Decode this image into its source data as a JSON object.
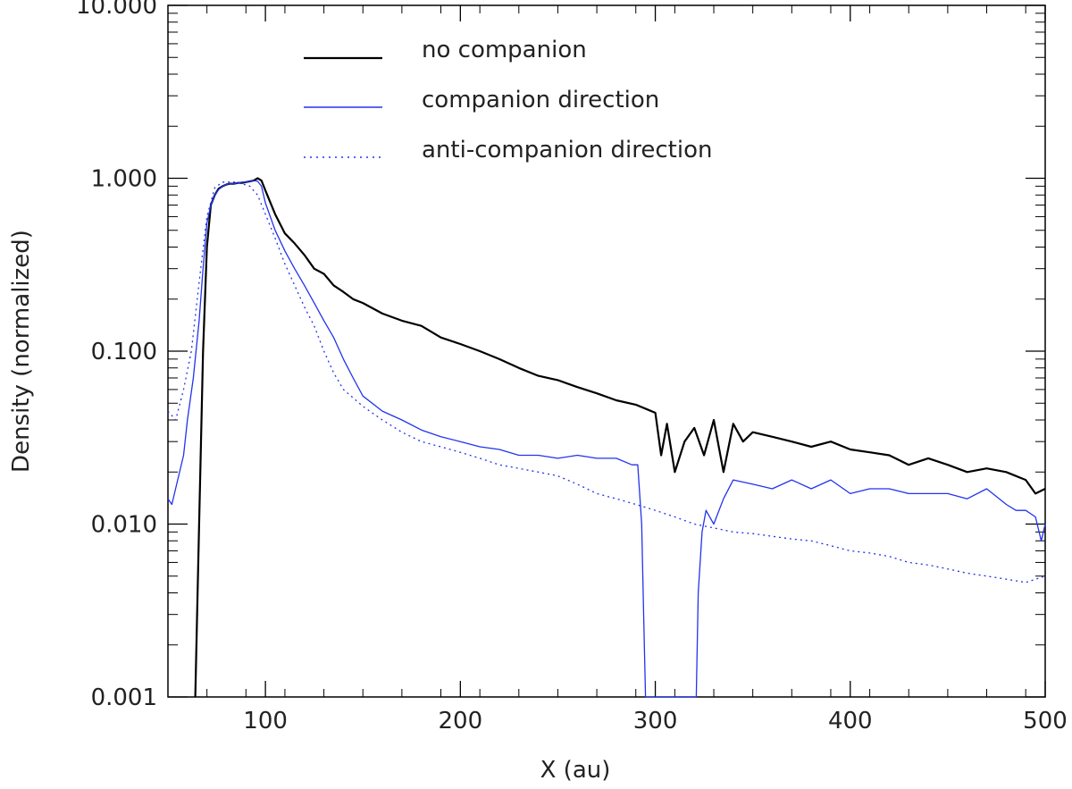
{
  "chart_data": {
    "type": "line",
    "title": "",
    "xlabel": "X (au)",
    "ylabel": "Density (normalized)",
    "xlim": [
      50,
      500
    ],
    "ylim": [
      0.001,
      10
    ],
    "yscale": "log",
    "x_ticks": [
      100,
      200,
      300,
      400,
      500
    ],
    "x_tick_labels": [
      "100",
      "200",
      "300",
      "400",
      "500"
    ],
    "y_ticks": [
      0.001,
      0.01,
      0.1,
      1,
      10
    ],
    "y_tick_labels": [
      "0.001",
      "0.010",
      "0.100",
      "1.000",
      "10.000"
    ],
    "legend_position": "top-center",
    "series": [
      {
        "name": "no companion",
        "color": "#000000",
        "style": "solid",
        "x": [
          64,
          66,
          68,
          70,
          72,
          74,
          76,
          78,
          80,
          82,
          84,
          86,
          88,
          90,
          92,
          94,
          96,
          98,
          100,
          105,
          110,
          115,
          120,
          125,
          130,
          135,
          140,
          145,
          150,
          160,
          170,
          180,
          190,
          200,
          210,
          220,
          230,
          240,
          250,
          260,
          270,
          280,
          290,
          296,
          300,
          303,
          306,
          310,
          315,
          320,
          325,
          330,
          335,
          340,
          345,
          350,
          360,
          370,
          380,
          390,
          400,
          410,
          420,
          430,
          440,
          450,
          460,
          470,
          480,
          490,
          495,
          500
        ],
        "y": [
          0.001,
          0.01,
          0.1,
          0.4,
          0.7,
          0.8,
          0.87,
          0.9,
          0.92,
          0.93,
          0.93,
          0.94,
          0.94,
          0.95,
          0.96,
          0.97,
          1.0,
          0.97,
          0.85,
          0.62,
          0.48,
          0.42,
          0.36,
          0.3,
          0.28,
          0.24,
          0.22,
          0.2,
          0.19,
          0.165,
          0.15,
          0.14,
          0.12,
          0.11,
          0.1,
          0.09,
          0.08,
          0.072,
          0.068,
          0.062,
          0.057,
          0.052,
          0.049,
          0.046,
          0.044,
          0.025,
          0.038,
          0.02,
          0.03,
          0.036,
          0.025,
          0.04,
          0.02,
          0.038,
          0.03,
          0.034,
          0.032,
          0.03,
          0.028,
          0.03,
          0.027,
          0.026,
          0.025,
          0.022,
          0.024,
          0.022,
          0.02,
          0.021,
          0.02,
          0.018,
          0.015,
          0.016
        ]
      },
      {
        "name": "companion direction",
        "color": "#2233ee",
        "style": "solid",
        "x": [
          50,
          52,
          55,
          58,
          60,
          63,
          66,
          68,
          70,
          72,
          74,
          76,
          78,
          80,
          82,
          84,
          86,
          88,
          90,
          92,
          94,
          96,
          98,
          100,
          105,
          110,
          115,
          120,
          125,
          130,
          135,
          140,
          145,
          150,
          160,
          170,
          180,
          190,
          200,
          210,
          220,
          230,
          240,
          250,
          260,
          270,
          280,
          288,
          291,
          293,
          294,
          295,
          296,
          300,
          305,
          310,
          315,
          318,
          320,
          321,
          322,
          324,
          326,
          330,
          335,
          340,
          350,
          360,
          370,
          380,
          390,
          400,
          410,
          420,
          430,
          440,
          450,
          460,
          470,
          480,
          485,
          490,
          495,
          498,
          500
        ],
        "y": [
          0.014,
          0.013,
          0.018,
          0.025,
          0.04,
          0.07,
          0.15,
          0.3,
          0.55,
          0.7,
          0.8,
          0.86,
          0.9,
          0.92,
          0.93,
          0.93,
          0.94,
          0.95,
          0.95,
          0.96,
          0.97,
          0.96,
          0.9,
          0.72,
          0.5,
          0.38,
          0.3,
          0.24,
          0.19,
          0.15,
          0.12,
          0.09,
          0.07,
          0.055,
          0.045,
          0.04,
          0.035,
          0.032,
          0.03,
          0.028,
          0.027,
          0.025,
          0.025,
          0.024,
          0.025,
          0.024,
          0.024,
          0.022,
          0.022,
          0.01,
          0.003,
          0.001,
          0.001,
          0.001,
          0.001,
          0.001,
          0.001,
          0.001,
          0.001,
          0.001,
          0.004,
          0.009,
          0.012,
          0.01,
          0.014,
          0.018,
          0.017,
          0.016,
          0.018,
          0.016,
          0.018,
          0.015,
          0.016,
          0.016,
          0.015,
          0.015,
          0.015,
          0.014,
          0.016,
          0.013,
          0.012,
          0.012,
          0.011,
          0.008,
          0.01
        ]
      },
      {
        "name": "anti-companion direction",
        "color": "#2233ee",
        "style": "dotted",
        "x": [
          50,
          54,
          58,
          62,
          66,
          70,
          74,
          78,
          80,
          84,
          88,
          92,
          96,
          100,
          105,
          110,
          115,
          120,
          125,
          130,
          135,
          140,
          150,
          160,
          170,
          180,
          190,
          200,
          210,
          220,
          230,
          240,
          250,
          260,
          270,
          280,
          290,
          300,
          310,
          320,
          330,
          340,
          350,
          360,
          370,
          380,
          390,
          400,
          410,
          420,
          430,
          440,
          450,
          460,
          470,
          480,
          490,
          500
        ],
        "y": [
          0.045,
          0.04,
          0.06,
          0.1,
          0.25,
          0.6,
          0.88,
          0.95,
          0.95,
          0.95,
          0.93,
          0.9,
          0.8,
          0.62,
          0.45,
          0.32,
          0.24,
          0.18,
          0.14,
          0.1,
          0.075,
          0.06,
          0.048,
          0.04,
          0.034,
          0.03,
          0.028,
          0.026,
          0.024,
          0.022,
          0.021,
          0.02,
          0.019,
          0.017,
          0.015,
          0.014,
          0.013,
          0.012,
          0.011,
          0.01,
          0.0095,
          0.009,
          0.0088,
          0.0085,
          0.0082,
          0.008,
          0.0075,
          0.007,
          0.0068,
          0.0065,
          0.006,
          0.0058,
          0.0055,
          0.0052,
          0.005,
          0.0048,
          0.0046,
          0.005
        ]
      }
    ]
  }
}
